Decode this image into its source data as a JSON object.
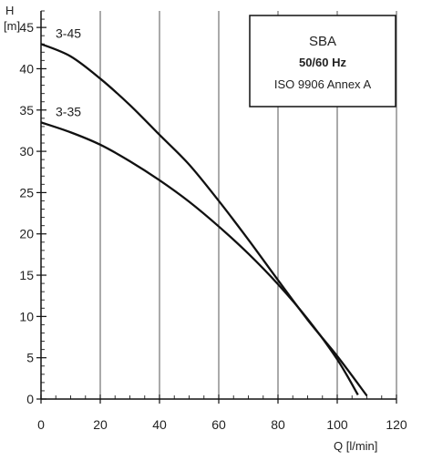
{
  "chart_data": {
    "type": "line",
    "x_axis": {
      "unit_label": "Q [l/min]",
      "ticks": [
        0,
        20,
        40,
        60,
        80,
        100,
        120
      ],
      "range": [
        0,
        120
      ]
    },
    "y_axis": {
      "var_label": "H",
      "unit_label": "[m]",
      "ticks": [
        0,
        5,
        10,
        15,
        20,
        25,
        30,
        35,
        40,
        45
      ],
      "range": [
        0,
        47
      ]
    },
    "grid": true,
    "legend_box": {
      "title": "SBA",
      "frequency": "50/60  Hz",
      "standard": "ISO 9906 Annex A",
      "placement": "top-right"
    },
    "series": [
      {
        "name": "3-45",
        "x": [
          0,
          10,
          20,
          30,
          40,
          50,
          60,
          70,
          80,
          90,
          100,
          110
        ],
        "y": [
          43,
          41.5,
          38.8,
          35.6,
          32.0,
          28.4,
          24.0,
          19.3,
          14.4,
          9.6,
          5.2,
          0.4
        ]
      },
      {
        "name": "3-35",
        "x": [
          0,
          10,
          20,
          30,
          40,
          50,
          60,
          70,
          80,
          90,
          100,
          107
        ],
        "y": [
          33.5,
          32.3,
          30.8,
          28.8,
          26.5,
          23.9,
          20.9,
          17.6,
          13.9,
          9.7,
          4.8,
          0.5
        ]
      }
    ]
  }
}
